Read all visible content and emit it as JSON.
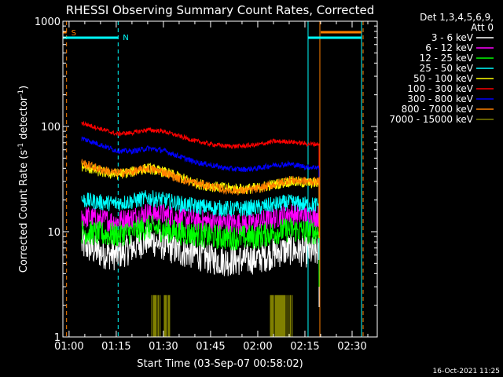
{
  "chart_data": {
    "type": "line",
    "title": "RHESSI Observing Summary Count Rates, Corrected",
    "xlabel": "Start Time (03-Sep-07 00:58:02)",
    "ylabel_main": "Corrected Count Rate (s",
    "ylabel_sup1": "-1",
    "ylabel_mid": " detector",
    "ylabel_sup2": "-1",
    "ylabel_end": ")",
    "y_scale": "log",
    "ylim": [
      1,
      1000
    ],
    "xlim_minutes": [
      58.03,
      158
    ],
    "x_ticks": [
      {
        "label": "01:00",
        "minute": 60
      },
      {
        "label": "01:15",
        "minute": 75
      },
      {
        "label": "01:30",
        "minute": 90
      },
      {
        "label": "01:45",
        "minute": 105
      },
      {
        "label": "02:00",
        "minute": 120
      },
      {
        "label": "02:15",
        "minute": 135
      },
      {
        "label": "02:30",
        "minute": 150
      }
    ],
    "y_ticks": [
      {
        "label": "1",
        "value": 1
      },
      {
        "label": "10",
        "value": 10
      },
      {
        "label": "100",
        "value": 100
      },
      {
        "label": "1000",
        "value": 1000
      }
    ],
    "legend_title_1": "Det 1,3,4,5,6,9,",
    "legend_title_2": "Att 0",
    "legend_position": "top-right",
    "series": [
      {
        "name": "3 - 6 keV",
        "color": "#ffffff",
        "x": [
          64,
          70,
          75,
          80,
          85,
          90,
          95,
          100,
          105,
          110,
          115,
          120,
          125,
          130,
          136
        ],
        "y": [
          7.5,
          6.3,
          6.0,
          7.0,
          8.5,
          7.5,
          6.5,
          6.2,
          5.5,
          5.3,
          5.4,
          5.6,
          6.2,
          6.8,
          6.4
        ]
      },
      {
        "name": "6 - 12 keV",
        "color": "#ff00ff",
        "x": [
          64,
          70,
          75,
          80,
          85,
          90,
          95,
          100,
          105,
          110,
          115,
          120,
          125,
          130,
          136
        ],
        "y": [
          14,
          13,
          12.5,
          13.5,
          15,
          14.5,
          13.5,
          13,
          12.5,
          12,
          12,
          12.3,
          13.5,
          15,
          14
        ]
      },
      {
        "name": "12 - 25 keV",
        "color": "#00ff00",
        "x": [
          64,
          70,
          75,
          80,
          85,
          90,
          95,
          100,
          105,
          110,
          115,
          120,
          125,
          130,
          136
        ],
        "y": [
          10,
          9.5,
          9.3,
          10,
          11,
          10.5,
          9.8,
          9.5,
          9.0,
          8.8,
          8.8,
          9.0,
          9.8,
          10.5,
          10
        ]
      },
      {
        "name": "25 - 50 keV",
        "color": "#00ffff",
        "x": [
          64,
          70,
          75,
          80,
          85,
          90,
          95,
          100,
          105,
          110,
          115,
          120,
          125,
          130,
          136
        ],
        "y": [
          20,
          19,
          18.5,
          19.5,
          21,
          20,
          18.5,
          17.5,
          17,
          16.5,
          16.5,
          17,
          18,
          19,
          18
        ]
      },
      {
        "name": "50 - 100 keV",
        "color": "#ffff00",
        "x": [
          64,
          70,
          75,
          80,
          85,
          90,
          95,
          100,
          105,
          110,
          115,
          120,
          125,
          130,
          136
        ],
        "y": [
          42,
          37,
          35,
          37,
          40,
          37,
          33,
          29,
          27,
          26,
          25.5,
          26,
          28,
          30,
          29
        ]
      },
      {
        "name": "100 - 300 keV",
        "color": "#ff0000",
        "x": [
          64,
          70,
          75,
          80,
          85,
          90,
          95,
          100,
          105,
          110,
          115,
          120,
          125,
          130,
          136
        ],
        "y": [
          108,
          95,
          85,
          87,
          93,
          90,
          81,
          73,
          68,
          65,
          65,
          67,
          72,
          72,
          68
        ]
      },
      {
        "name": "300 - 800 keV",
        "color": "#0000ff",
        "x": [
          64,
          70,
          75,
          80,
          85,
          90,
          95,
          100,
          105,
          110,
          115,
          120,
          125,
          130,
          136
        ],
        "y": [
          77,
          67,
          59,
          58,
          62,
          59,
          52,
          46,
          43,
          40,
          39,
          40,
          43,
          44,
          41
        ]
      },
      {
        "name": "800 - 7000 keV",
        "color": "#ff8000",
        "x": [
          64,
          70,
          75,
          80,
          85,
          90,
          95,
          100,
          105,
          110,
          115,
          120,
          125,
          130,
          136
        ],
        "y": [
          45,
          39,
          36,
          37,
          40,
          37,
          32,
          29,
          27,
          25,
          24.5,
          25.5,
          28,
          31,
          30
        ]
      },
      {
        "name": "7000 - 15000 keV",
        "color": "#808000",
        "x": [
          64,
          70,
          75,
          80,
          85,
          90,
          95,
          100,
          105,
          110,
          115,
          120,
          125,
          130,
          136
        ],
        "y": [
          1,
          1,
          1,
          1,
          1,
          1,
          1,
          1,
          1,
          1,
          1,
          1,
          1,
          1,
          1
        ]
      }
    ],
    "markers": {
      "s_label": "S",
      "n_label": "N",
      "saa_start_minute": 59.2,
      "night_start_minute": 75.6,
      "night_end_minute": 136,
      "saa_end_minute": 153,
      "data_end_minute": 139.5
    },
    "timestamp": "16-Oct-2021 11:25"
  }
}
